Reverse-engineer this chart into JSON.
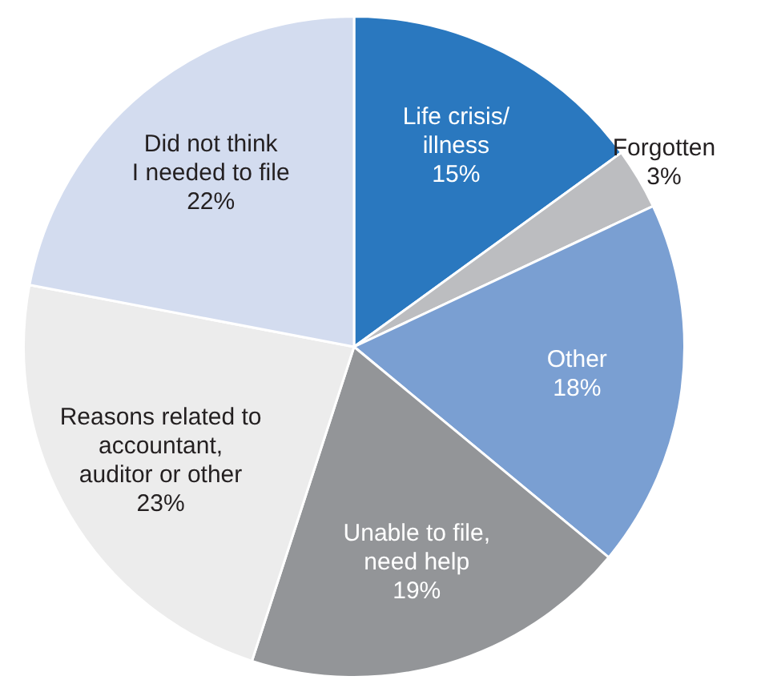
{
  "chart_data": {
    "type": "pie",
    "categories": [
      "Life crisis/\nillness",
      "Forgotten",
      "Other",
      "Unable to file,\nneed help",
      "Reasons related to\naccountant,\nauditor or other",
      "Did not think\nI needed to file"
    ],
    "values": [
      15,
      3,
      18,
      19,
      23,
      22
    ],
    "value_labels": [
      "15%",
      "3%",
      "18%",
      "19%",
      "23%",
      "22%"
    ],
    "colors": [
      "#2a78bf",
      "#bcbdc0",
      "#7a9fd2",
      "#939598",
      "#ececec",
      "#d3dcef"
    ],
    "legend": false
  }
}
